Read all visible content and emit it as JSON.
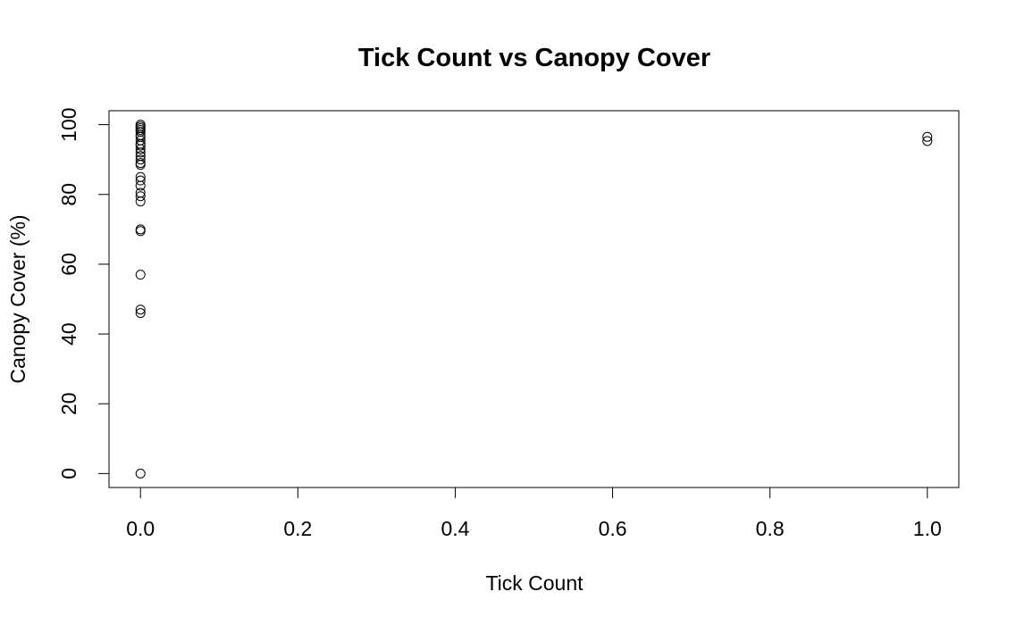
{
  "chart_data": {
    "type": "scatter",
    "title": "Tick Count vs Canopy Cover",
    "xlabel": "Tick Count",
    "ylabel": "Canopy Cover (%)",
    "xlim": [
      -0.04,
      1.04
    ],
    "ylim": [
      -4,
      104
    ],
    "x_ticks": [
      0.0,
      0.2,
      0.4,
      0.6,
      0.8,
      1.0
    ],
    "x_tick_labels": [
      "0.0",
      "0.2",
      "0.4",
      "0.6",
      "0.8",
      "1.0"
    ],
    "y_ticks": [
      0,
      20,
      40,
      60,
      80,
      100
    ],
    "y_tick_labels": [
      "0",
      "20",
      "40",
      "60",
      "80",
      "100"
    ],
    "grid": false,
    "legend": "none",
    "marker": "open-circle",
    "points": [
      {
        "x": 0,
        "y": 100
      },
      {
        "x": 0,
        "y": 99.5
      },
      {
        "x": 0,
        "y": 99
      },
      {
        "x": 0,
        "y": 98.5
      },
      {
        "x": 0,
        "y": 98
      },
      {
        "x": 0,
        "y": 97
      },
      {
        "x": 0,
        "y": 96.5
      },
      {
        "x": 0,
        "y": 95.5
      },
      {
        "x": 0,
        "y": 94.5
      },
      {
        "x": 0,
        "y": 94
      },
      {
        "x": 0,
        "y": 93
      },
      {
        "x": 0,
        "y": 92
      },
      {
        "x": 0,
        "y": 91
      },
      {
        "x": 0,
        "y": 90
      },
      {
        "x": 0,
        "y": 89
      },
      {
        "x": 0,
        "y": 88.5
      },
      {
        "x": 0,
        "y": 85
      },
      {
        "x": 0,
        "y": 84
      },
      {
        "x": 0,
        "y": 82.5
      },
      {
        "x": 0,
        "y": 80.5
      },
      {
        "x": 0,
        "y": 79.5
      },
      {
        "x": 0,
        "y": 78
      },
      {
        "x": 0,
        "y": 70
      },
      {
        "x": 0,
        "y": 69.5
      },
      {
        "x": 0,
        "y": 57
      },
      {
        "x": 0,
        "y": 47
      },
      {
        "x": 0,
        "y": 46
      },
      {
        "x": 0,
        "y": 0
      },
      {
        "x": 1,
        "y": 96.5
      },
      {
        "x": 1,
        "y": 95.3
      }
    ]
  }
}
